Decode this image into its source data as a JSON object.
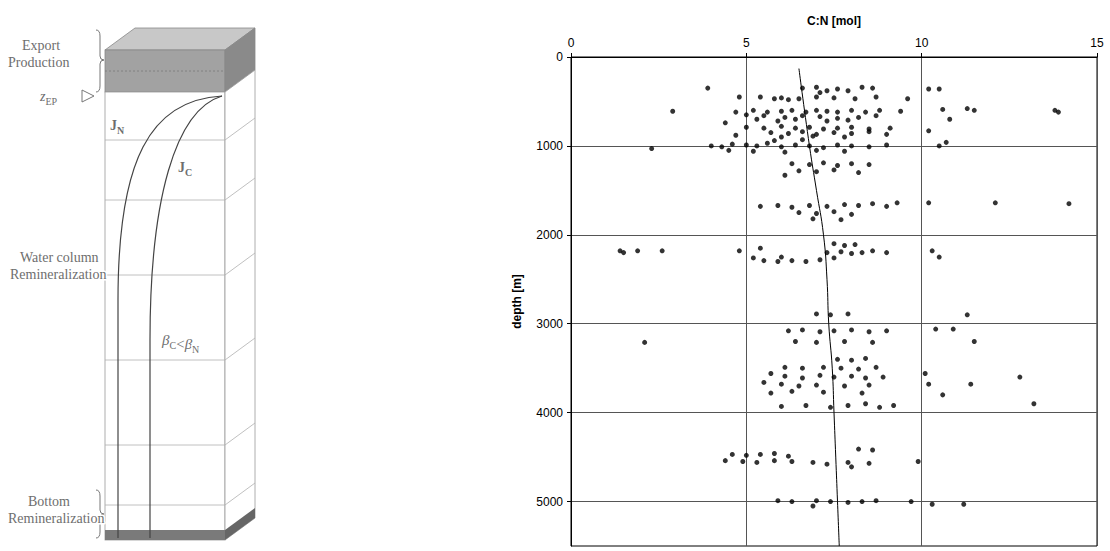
{
  "chart_data": {
    "type": "scatter",
    "xlabel": "C:N [mol]",
    "ylabel": "depth [m]",
    "xlim": [
      0,
      15
    ],
    "xticks": [
      0,
      5,
      10,
      15
    ],
    "ylim": [
      0,
      5500
    ],
    "yticks": [
      0,
      1000,
      2000,
      3000,
      4000,
      5000
    ],
    "grid": true,
    "series": [
      {
        "type": "scatter",
        "color": "#000000",
        "marker": "circle",
        "x": [
          3.9,
          4.8,
          5.4,
          6.6,
          7.0,
          7.3,
          7.6,
          7.9,
          8.3,
          8.6,
          7.1,
          10.2,
          10.5,
          5.8,
          6.2,
          6.0,
          6.5,
          7.0,
          7.5,
          8.1,
          8.7,
          9.6,
          2.9,
          4.7,
          5.2,
          5.6,
          6.0,
          6.3,
          6.7,
          7.0,
          7.3,
          7.6,
          8.0,
          8.4,
          8.8,
          9.4,
          10.6,
          11.3,
          11.5,
          13.8,
          13.9,
          5.0,
          5.5,
          6.1,
          6.6,
          7.1,
          7.6,
          8.2,
          8.7,
          5.3,
          5.9,
          6.4,
          7.3,
          7.9,
          4.4,
          10.8,
          5.0,
          5.5,
          6.0,
          6.4,
          6.8,
          7.2,
          7.6,
          8.0,
          8.5,
          9.1,
          5.7,
          6.2,
          6.6,
          7.0,
          7.5,
          8.0,
          8.5,
          9.0,
          10.2,
          4.7,
          6.0,
          6.9,
          7.8,
          4.0,
          4.3,
          4.6,
          5.0,
          5.3,
          5.6,
          6.0,
          6.4,
          6.8,
          7.2,
          7.6,
          8.0,
          8.5,
          9.0,
          10.5,
          10.7,
          2.3,
          4.5,
          5.2,
          6.1,
          7.0,
          7.8,
          5.8,
          6.6,
          6.3,
          6.8,
          7.2,
          7.6,
          8.0,
          8.5,
          6.5,
          7.0,
          7.5,
          8.2,
          6.1,
          5.4,
          5.9,
          6.3,
          6.8,
          7.3,
          7.8,
          8.2,
          8.6,
          9.0,
          9.3,
          10.2,
          12.1,
          14.2,
          6.5,
          7.0,
          7.5,
          8.0,
          6.9,
          7.7,
          1.4,
          1.5,
          1.9,
          2.6,
          4.8,
          5.4,
          7.5,
          7.8,
          8.1,
          7.3,
          7.7,
          8.0,
          8.3,
          8.6,
          9.0,
          10.3,
          10.5,
          5.5,
          5.9,
          6.3,
          6.7,
          7.1,
          7.5,
          5.2,
          6.0,
          7.0,
          7.4,
          7.9,
          11.3,
          6.2,
          6.6,
          7.1,
          7.5,
          8.0,
          8.5,
          9.0,
          10.4,
          10.9,
          2.1,
          6.4,
          7.0,
          7.8,
          8.6,
          11.5,
          7.6,
          8.0,
          8.4,
          6.1,
          6.6,
          7.2,
          7.7,
          8.2,
          8.7,
          5.7,
          6.1,
          6.6,
          7.1,
          7.5,
          8.0,
          8.4,
          8.9,
          10.1,
          12.8,
          5.5,
          6.0,
          6.5,
          7.0,
          7.8,
          8.5,
          10.2,
          11.4,
          5.7,
          6.3,
          7.2,
          8.3,
          10.6,
          6.0,
          6.7,
          7.4,
          7.9,
          8.4,
          8.8,
          9.2,
          13.2,
          8.2,
          8.6,
          4.6,
          5.0,
          5.4,
          5.8,
          6.2,
          4.4,
          4.9,
          5.3,
          5.8,
          6.3,
          6.9,
          7.3,
          7.9,
          8.5,
          9.9,
          8.0,
          5.9,
          6.3,
          7.0,
          7.4,
          7.9,
          8.3,
          8.7,
          9.7,
          10.3,
          11.2,
          6.9
        ],
        "values": [
          350,
          450,
          450,
          350,
          340,
          380,
          360,
          380,
          340,
          350,
          400,
          360,
          360,
          470,
          480,
          460,
          470,
          450,
          460,
          470,
          450,
          470,
          610,
          620,
          600,
          620,
          610,
          600,
          620,
          600,
          610,
          620,
          600,
          620,
          600,
          610,
          590,
          580,
          600,
          600,
          620,
          650,
          660,
          680,
          660,
          670,
          690,
          680,
          660,
          700,
          720,
          700,
          720,
          710,
          740,
          700,
          790,
          800,
          780,
          800,
          790,
          810,
          800,
          790,
          810,
          800,
          850,
          860,
          840,
          870,
          850,
          860,
          840,
          870,
          830,
          880,
          900,
          890,
          900,
          1000,
          1010,
          980,
          990,
          1000,
          970,
          1010,
          990,
          1000,
          1020,
          990,
          1000,
          1010,
          990,
          1000,
          960,
          1030,
          1050,
          1060,
          1070,
          1050,
          1060,
          940,
          930,
          1200,
          1210,
          1190,
          1220,
          1200,
          1210,
          1280,
          1290,
          1270,
          1300,
          1330,
          1680,
          1670,
          1690,
          1670,
          1680,
          1660,
          1670,
          1650,
          1680,
          1640,
          1640,
          1640,
          1650,
          1750,
          1760,
          1740,
          1770,
          1820,
          1830,
          2180,
          2200,
          2180,
          2180,
          2180,
          2150,
          2100,
          2120,
          2110,
          2200,
          2190,
          2210,
          2200,
          2180,
          2200,
          2180,
          2250,
          2290,
          2300,
          2290,
          2300,
          2280,
          2260,
          2260,
          2250,
          2890,
          2900,
          2890,
          2900,
          3080,
          3070,
          3090,
          3080,
          3070,
          3090,
          3080,
          3060,
          3060,
          3210,
          3200,
          3210,
          3200,
          3210,
          3200,
          3400,
          3410,
          3390,
          3490,
          3500,
          3490,
          3500,
          3510,
          3490,
          3560,
          3590,
          3610,
          3580,
          3600,
          3590,
          3610,
          3600,
          3560,
          3600,
          3660,
          3680,
          3700,
          3690,
          3700,
          3690,
          3680,
          3680,
          3780,
          3760,
          3770,
          3780,
          3800,
          3930,
          3920,
          3940,
          3920,
          3900,
          3940,
          3920,
          3900,
          4410,
          4420,
          4470,
          4480,
          4470,
          4460,
          4490,
          4540,
          4550,
          4560,
          4540,
          4550,
          4560,
          4580,
          4560,
          4570,
          4550,
          4610,
          4990,
          5000,
          4990,
          5000,
          5010,
          5000,
          4990,
          5000,
          5030,
          5030,
          5050
        ]
      },
      {
        "type": "line",
        "color": "#000000",
        "line_style": "solid",
        "x": [
          6.5,
          6.8,
          7.0,
          7.2,
          7.3,
          7.35,
          7.45,
          7.5,
          7.55,
          7.6,
          7.65
        ],
        "values": [
          130,
          1000,
          1500,
          2000,
          2500,
          3000,
          3500,
          4000,
          4500,
          5000,
          5500
        ]
      }
    ]
  },
  "diagram": {
    "export_production": [
      "Export",
      "Production"
    ],
    "z_ep": {
      "base": "z",
      "sub": "EP"
    },
    "flux_n": {
      "base": "J",
      "sub": "N"
    },
    "flux_c": {
      "base": "J",
      "sub": "C"
    },
    "water_column": [
      "Water column",
      "Remineralization"
    ],
    "ratio": [
      {
        "base": "β",
        "sub": "C"
      },
      "<",
      {
        "base": "β",
        "sub": "N"
      }
    ],
    "bottom": [
      "Bottom",
      "Remineralization"
    ]
  }
}
